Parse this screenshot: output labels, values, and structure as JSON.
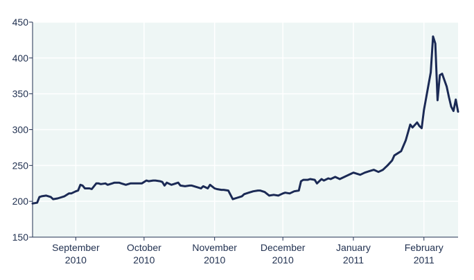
{
  "chart_data": {
    "type": "line",
    "title": "",
    "xlabel": "",
    "ylabel": "",
    "ylim": [
      150,
      450
    ],
    "yticks": [
      150,
      200,
      250,
      300,
      350,
      400,
      450
    ],
    "xlim": [
      "2010-08-13",
      "2011-02-16"
    ],
    "xticks": [
      {
        "date": "2010-09-01",
        "month": "September",
        "year": "2010"
      },
      {
        "date": "2010-10-01",
        "month": "October",
        "year": "2010"
      },
      {
        "date": "2010-11-01",
        "month": "November",
        "year": "2010"
      },
      {
        "date": "2010-12-01",
        "month": "December",
        "year": "2010"
      },
      {
        "date": "2011-01-01",
        "month": "January",
        "year": "2011"
      },
      {
        "date": "2011-02-01",
        "month": "February",
        "year": "2011"
      }
    ],
    "grid": true,
    "colors": {
      "line": "#1b2a55",
      "plot_bg": "#eef6f5",
      "grid": "#ffffff",
      "axis": "#1f2f4f"
    },
    "series": [
      {
        "x": [
          "2010-08-13",
          "2010-08-15",
          "2010-08-16",
          "2010-08-17",
          "2010-08-19",
          "2010-08-21",
          "2010-08-22",
          "2010-08-24",
          "2010-08-25",
          "2010-08-27",
          "2010-08-29",
          "2010-08-30",
          "2010-09-01",
          "2010-09-02",
          "2010-09-03",
          "2010-09-04",
          "2010-09-05",
          "2010-09-07",
          "2010-09-08",
          "2010-09-10",
          "2010-09-11",
          "2010-09-12",
          "2010-09-14",
          "2010-09-15",
          "2010-09-17",
          "2010-09-18",
          "2010-09-20",
          "2010-09-21",
          "2010-09-23",
          "2010-09-25",
          "2010-09-26",
          "2010-09-28",
          "2010-09-30",
          "2010-10-02",
          "2010-10-03",
          "2010-10-05",
          "2010-10-06",
          "2010-10-08",
          "2010-10-09",
          "2010-10-10",
          "2010-10-11",
          "2010-10-13",
          "2010-10-14",
          "2010-10-16",
          "2010-10-17",
          "2010-10-19",
          "2010-10-21",
          "2010-10-22",
          "2010-10-24",
          "2010-10-26",
          "2010-10-27",
          "2010-10-29",
          "2010-10-30",
          "2010-11-01",
          "2010-11-02",
          "2010-11-04",
          "2010-11-05",
          "2010-11-07",
          "2010-11-09",
          "2010-11-11",
          "2010-11-13",
          "2010-11-14",
          "2010-11-16",
          "2010-11-18",
          "2010-11-20",
          "2010-11-21",
          "2010-11-23",
          "2010-11-25",
          "2010-11-27",
          "2010-11-29",
          "2010-12-01",
          "2010-12-02",
          "2010-12-04",
          "2010-12-06",
          "2010-12-08",
          "2010-12-09",
          "2010-12-10",
          "2010-12-12",
          "2010-12-13",
          "2010-12-15",
          "2010-12-16",
          "2010-12-18",
          "2010-12-19",
          "2010-12-21",
          "2010-12-22",
          "2010-12-24",
          "2010-12-26",
          "2011-01-01",
          "2011-01-04",
          "2011-01-06",
          "2011-01-08",
          "2011-01-10",
          "2011-01-12",
          "2011-01-14",
          "2011-01-16",
          "2011-01-18",
          "2011-01-19",
          "2011-01-21",
          "2011-01-22",
          "2011-01-24",
          "2011-01-26",
          "2011-01-27",
          "2011-01-29",
          "2011-01-30",
          "2011-01-31",
          "2011-02-01",
          "2011-02-04",
          "2011-02-05",
          "2011-02-06",
          "2011-02-07",
          "2011-02-08",
          "2011-02-09",
          "2011-02-11",
          "2011-02-12",
          "2011-02-13",
          "2011-02-14",
          "2011-02-15",
          "2011-02-16"
        ],
        "y": [
          197,
          198,
          206,
          207,
          208,
          206,
          203,
          204,
          205,
          207,
          211,
          211,
          214,
          215,
          223,
          222,
          218,
          218,
          217,
          225,
          225,
          224,
          225,
          223,
          225,
          226,
          226,
          225,
          223,
          225,
          225,
          225,
          225,
          229,
          228,
          229,
          229,
          228,
          227,
          222,
          226,
          223,
          224,
          226,
          222,
          221,
          222,
          222,
          220,
          218,
          221,
          218,
          223,
          218,
          217,
          216,
          216,
          215,
          203,
          205,
          207,
          210,
          212,
          214,
          215,
          215,
          213,
          208,
          209,
          208,
          211,
          212,
          211,
          214,
          215,
          228,
          230,
          230,
          231,
          230,
          225,
          231,
          229,
          232,
          231,
          234,
          231,
          240,
          237,
          240,
          242,
          244,
          241,
          244,
          250,
          257,
          264,
          268,
          270,
          285,
          307,
          303,
          310,
          305,
          302,
          327,
          380,
          430,
          420,
          341,
          376,
          378,
          360,
          345,
          332,
          326,
          342,
          325
        ]
      }
    ]
  }
}
